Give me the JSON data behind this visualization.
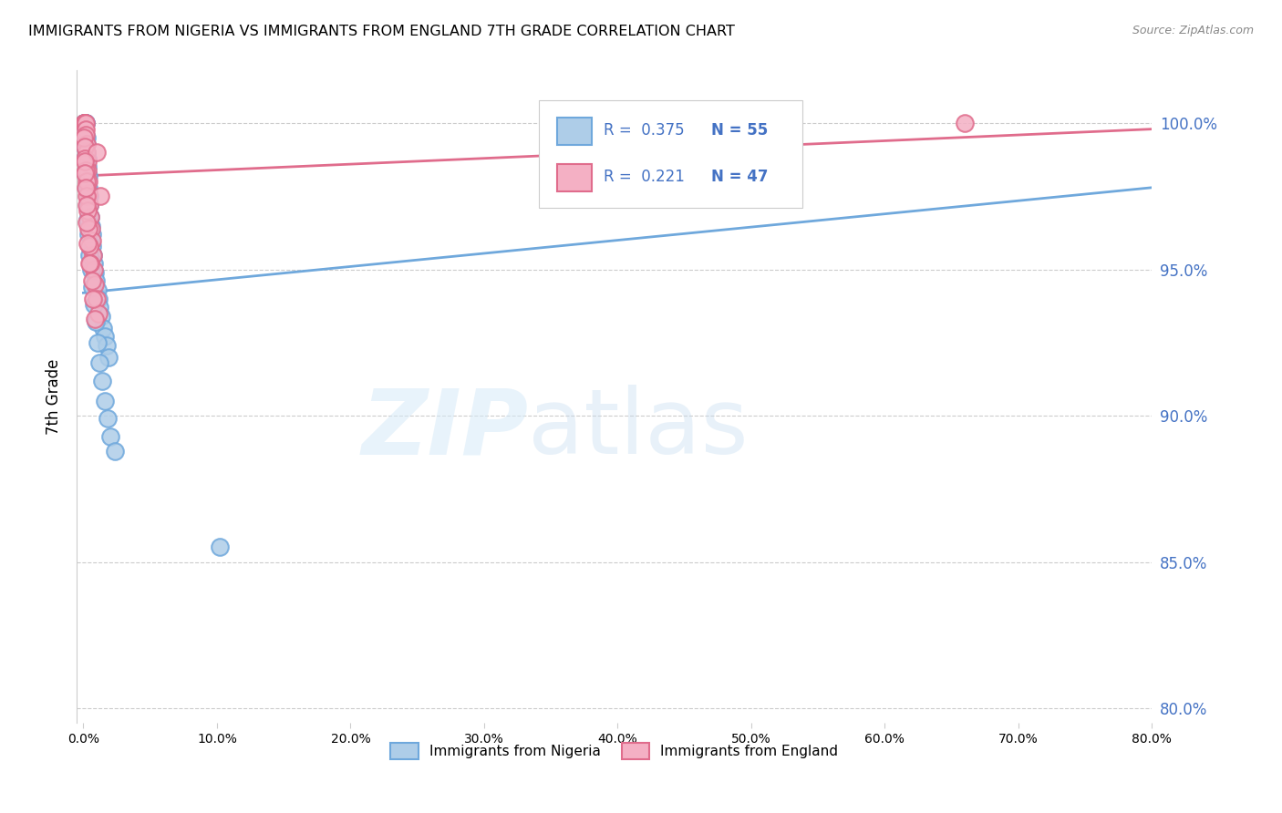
{
  "title": "IMMIGRANTS FROM NIGERIA VS IMMIGRANTS FROM ENGLAND 7TH GRADE CORRELATION CHART",
  "source": "Source: ZipAtlas.com",
  "ylabel": "7th Grade",
  "y_ticks": [
    80.0,
    85.0,
    90.0,
    95.0,
    100.0
  ],
  "x_ticks": [
    0.0,
    10.0,
    20.0,
    30.0,
    40.0,
    50.0,
    60.0,
    70.0,
    80.0
  ],
  "xlim": [
    -0.5,
    80.0
  ],
  "ylim": [
    79.5,
    101.8
  ],
  "nigeria_color": "#6fa8dc",
  "nigeria_color_fill": "#aecde8",
  "england_color": "#e06c8c",
  "england_color_fill": "#f4b0c4",
  "nigeria_R": 0.375,
  "nigeria_N": 55,
  "england_R": 0.221,
  "england_N": 47,
  "legend_label_nigeria": "Immigrants from Nigeria",
  "legend_label_england": "Immigrants from England",
  "nigeria_x": [
    0.05,
    0.07,
    0.09,
    0.1,
    0.12,
    0.13,
    0.14,
    0.16,
    0.18,
    0.2,
    0.22,
    0.25,
    0.27,
    0.3,
    0.33,
    0.36,
    0.4,
    0.44,
    0.48,
    0.52,
    0.57,
    0.62,
    0.68,
    0.74,
    0.8,
    0.87,
    0.95,
    1.03,
    1.12,
    1.22,
    1.33,
    1.45,
    1.58,
    1.72,
    1.87,
    0.1,
    0.14,
    0.18,
    0.23,
    0.28,
    0.34,
    0.4,
    0.48,
    0.57,
    0.67,
    0.78,
    0.9,
    1.05,
    1.2,
    1.38,
    1.58,
    1.8,
    2.05,
    2.35,
    10.2
  ],
  "nigeria_y": [
    100.0,
    100.0,
    100.0,
    100.0,
    100.0,
    100.0,
    100.0,
    100.0,
    100.0,
    100.0,
    99.5,
    99.3,
    99.0,
    98.8,
    98.5,
    98.2,
    97.8,
    97.5,
    97.2,
    96.8,
    96.5,
    96.2,
    95.8,
    95.5,
    95.2,
    94.9,
    94.6,
    94.3,
    94.0,
    93.7,
    93.4,
    93.0,
    92.7,
    92.4,
    92.0,
    99.2,
    98.8,
    98.3,
    97.8,
    97.2,
    96.7,
    96.2,
    95.5,
    95.0,
    94.4,
    93.8,
    93.2,
    92.5,
    91.8,
    91.2,
    90.5,
    89.9,
    89.3,
    88.8,
    85.5
  ],
  "england_x": [
    0.04,
    0.06,
    0.08,
    0.1,
    0.12,
    0.14,
    0.16,
    0.18,
    0.2,
    0.22,
    0.25,
    0.28,
    0.31,
    0.35,
    0.39,
    0.44,
    0.49,
    0.55,
    0.62,
    0.7,
    0.78,
    0.88,
    0.99,
    1.11,
    1.25,
    0.07,
    0.1,
    0.13,
    0.17,
    0.21,
    0.26,
    0.32,
    0.38,
    0.45,
    0.53,
    0.62,
    0.73,
    0.86,
    1.0,
    0.08,
    0.12,
    0.16,
    0.21,
    0.27,
    0.33,
    0.42,
    66.0
  ],
  "england_y": [
    100.0,
    100.0,
    100.0,
    100.0,
    100.0,
    100.0,
    100.0,
    99.8,
    99.6,
    99.3,
    99.0,
    98.7,
    98.4,
    98.0,
    97.6,
    97.2,
    96.8,
    96.4,
    96.0,
    95.5,
    95.0,
    94.5,
    94.0,
    93.5,
    97.5,
    99.5,
    99.2,
    98.8,
    98.4,
    98.0,
    97.5,
    97.0,
    96.4,
    95.8,
    95.2,
    94.6,
    94.0,
    93.3,
    99.0,
    98.7,
    98.3,
    97.8,
    97.2,
    96.6,
    95.9,
    95.2,
    100.0
  ],
  "trendline_nigeria": [
    94.2,
    97.8
  ],
  "trendline_england": [
    98.2,
    99.8
  ],
  "trendline_x": [
    0.0,
    80.0
  ]
}
